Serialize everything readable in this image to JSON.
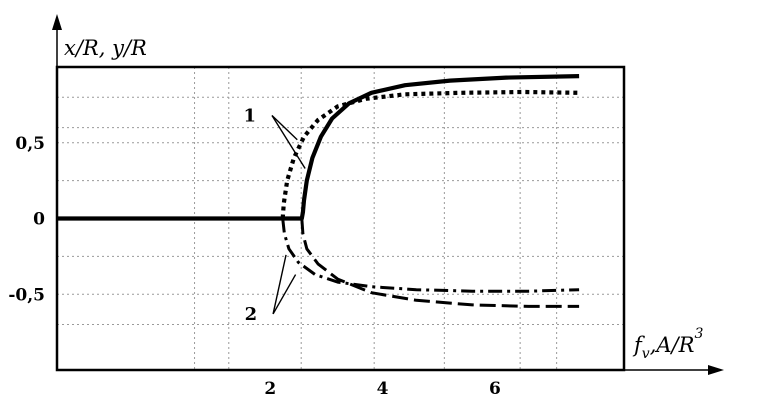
{
  "chart_data": {
    "type": "line",
    "title": "",
    "ylabel": "x/R, y/R",
    "xlabel": {
      "main": "f",
      "sub": "v",
      "tail": ",A/R",
      "sup": "3"
    },
    "xlim": [
      -1.8,
      8.3
    ],
    "ylim": [
      -1.0,
      1.0
    ],
    "grid": true,
    "x_ticks": [
      {
        "value": 2,
        "label": "2"
      },
      {
        "value": 4,
        "label": "4"
      },
      {
        "value": 6,
        "label": "6"
      }
    ],
    "y_ticks": [
      {
        "value": 0.5,
        "label": "0,5"
      },
      {
        "value": 0,
        "label": "0"
      },
      {
        "value": -0.5,
        "label": "-0,5"
      }
    ],
    "grid_x": [
      0.65,
      1.26,
      2.55,
      3.85,
      5.1,
      6.45,
      7.1
    ],
    "grid_y": [
      0.8,
      0.6,
      0.5,
      0.25,
      -0.25,
      -0.5,
      -0.7
    ],
    "series": [
      {
        "style": "solid",
        "points": [
          [
            -1.8,
            0
          ],
          [
            2.56,
            0
          ],
          [
            2.58,
            0.04
          ],
          [
            2.6,
            0.12
          ],
          [
            2.65,
            0.25
          ],
          [
            2.75,
            0.4
          ],
          [
            2.9,
            0.54
          ],
          [
            3.1,
            0.66
          ],
          [
            3.4,
            0.76
          ],
          [
            3.8,
            0.83
          ],
          [
            4.4,
            0.88
          ],
          [
            5.2,
            0.91
          ],
          [
            6.2,
            0.93
          ],
          [
            7.5,
            0.94
          ]
        ]
      },
      {
        "style": "dotted",
        "points": [
          [
            2.22,
            0
          ],
          [
            2.24,
            0.1
          ],
          [
            2.3,
            0.25
          ],
          [
            2.42,
            0.4
          ],
          [
            2.6,
            0.54
          ],
          [
            2.85,
            0.65
          ],
          [
            3.2,
            0.74
          ],
          [
            3.7,
            0.79
          ],
          [
            4.4,
            0.82
          ],
          [
            5.4,
            0.83
          ],
          [
            6.5,
            0.835
          ],
          [
            7.5,
            0.83
          ]
        ]
      },
      {
        "style": "dash-dot",
        "points": [
          [
            2.22,
            0
          ],
          [
            2.25,
            -0.1
          ],
          [
            2.33,
            -0.2
          ],
          [
            2.5,
            -0.29
          ],
          [
            2.8,
            -0.37
          ],
          [
            3.2,
            -0.42
          ],
          [
            3.8,
            -0.45
          ],
          [
            4.6,
            -0.47
          ],
          [
            5.6,
            -0.48
          ],
          [
            6.6,
            -0.48
          ],
          [
            7.5,
            -0.47
          ]
        ]
      },
      {
        "style": "dashed",
        "points": [
          [
            2.56,
            0
          ],
          [
            2.58,
            -0.1
          ],
          [
            2.65,
            -0.2
          ],
          [
            2.85,
            -0.3
          ],
          [
            3.2,
            -0.4
          ],
          [
            3.8,
            -0.49
          ],
          [
            4.6,
            -0.54
          ],
          [
            5.6,
            -0.57
          ],
          [
            6.6,
            -0.58
          ],
          [
            7.5,
            -0.58
          ]
        ]
      }
    ],
    "annotations": [
      {
        "label": "1",
        "anchor": [
          1.78,
          0.68
        ],
        "targets": [
          [
            2.48,
            0.52
          ],
          [
            2.62,
            0.33
          ]
        ]
      },
      {
        "label": "2",
        "anchor": [
          1.8,
          -0.63
        ],
        "targets": [
          [
            2.28,
            -0.24
          ],
          [
            2.45,
            -0.37
          ]
        ]
      }
    ]
  }
}
